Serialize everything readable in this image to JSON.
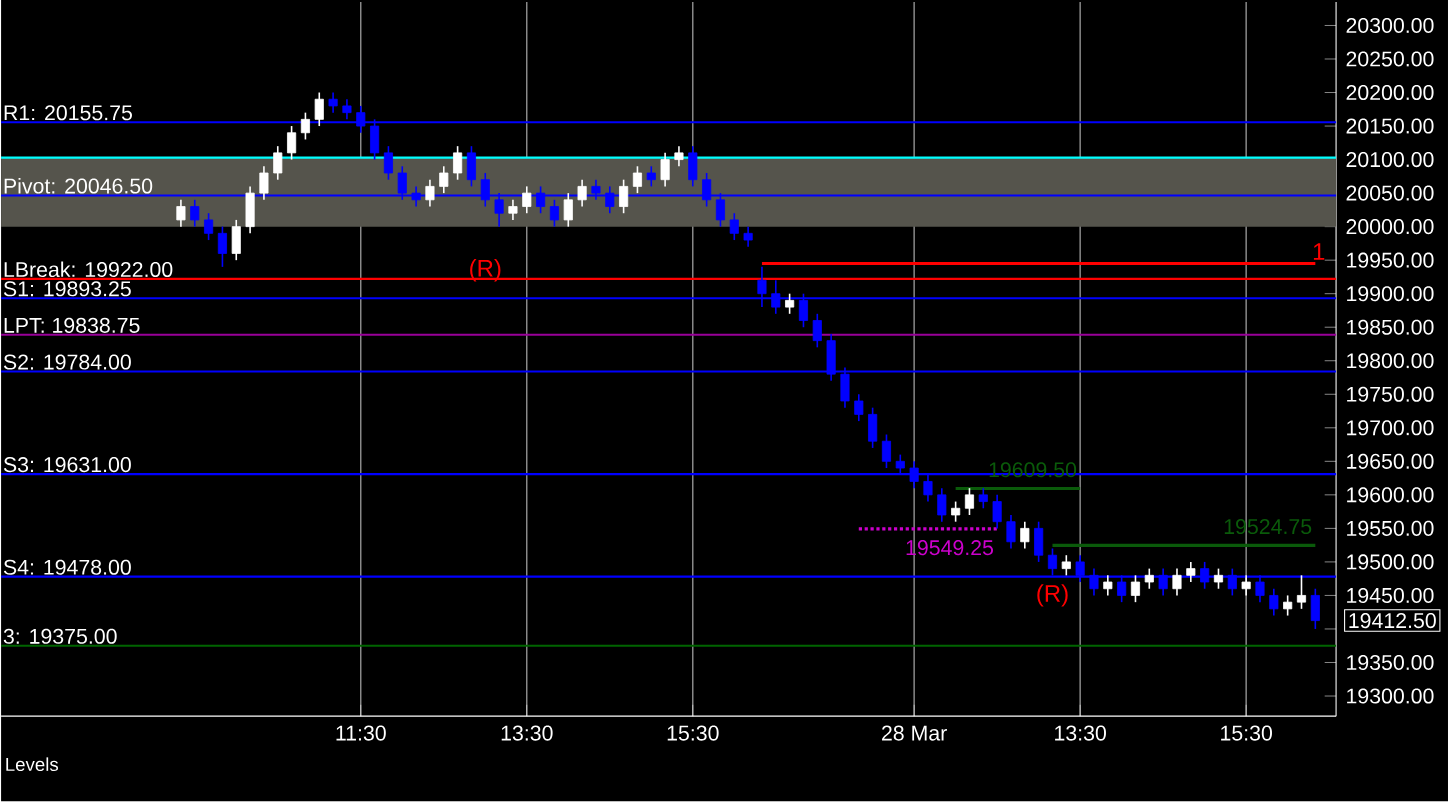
{
  "chart_data": {
    "type": "candlestick",
    "categories": [
      null,
      null,
      null,
      null,
      null,
      null,
      null,
      null,
      null,
      null,
      null,
      null,
      null,
      "11:30",
      null,
      null,
      null,
      null,
      null,
      null,
      null,
      null,
      null,
      null,
      null,
      "13:30",
      null,
      null,
      null,
      null,
      null,
      null,
      null,
      null,
      null,
      null,
      null,
      "15:30",
      null,
      null,
      null,
      null,
      null,
      null,
      null,
      null,
      null,
      null,
      null,
      null,
      null,
      null,
      null,
      "28 Mar",
      null,
      null,
      null,
      null,
      null,
      null,
      null,
      null,
      null,
      null,
      null,
      "13:30",
      null,
      null,
      null,
      null,
      null,
      null,
      null,
      null,
      null,
      null,
      null,
      "15:30",
      null,
      null,
      null,
      null,
      null
    ],
    "ohlc": [
      [
        20010,
        20040,
        20000,
        20030
      ],
      [
        20030,
        20040,
        20000,
        20010
      ],
      [
        20010,
        20020,
        19980,
        19990
      ],
      [
        19990,
        20000,
        19940,
        19960
      ],
      [
        19960,
        20010,
        19950,
        20000
      ],
      [
        20000,
        20060,
        19990,
        20050
      ],
      [
        20050,
        20090,
        20040,
        20080
      ],
      [
        20080,
        20120,
        20070,
        20110
      ],
      [
        20110,
        20150,
        20100,
        20140
      ],
      [
        20140,
        20170,
        20130,
        20160
      ],
      [
        20160,
        20200,
        20150,
        20190
      ],
      [
        20190,
        20200,
        20170,
        20180
      ],
      [
        20180,
        20190,
        20160,
        20170
      ],
      [
        20170,
        20180,
        20140,
        20150
      ],
      [
        20150,
        20160,
        20100,
        20110
      ],
      [
        20110,
        20120,
        20070,
        20080
      ],
      [
        20080,
        20090,
        20040,
        20050
      ],
      [
        20050,
        20060,
        20030,
        20040
      ],
      [
        20040,
        20070,
        20030,
        20060
      ],
      [
        20060,
        20090,
        20050,
        20080
      ],
      [
        20080,
        20120,
        20070,
        20110
      ],
      [
        20110,
        20120,
        20060,
        20070
      ],
      [
        20070,
        20080,
        20030,
        20040
      ],
      [
        20040,
        20050,
        20000,
        20020
      ],
      [
        20020,
        20040,
        20010,
        20030
      ],
      [
        20030,
        20060,
        20020,
        20050
      ],
      [
        20050,
        20060,
        20020,
        20030
      ],
      [
        20030,
        20040,
        20000,
        20010
      ],
      [
        20010,
        20050,
        20000,
        20040
      ],
      [
        20040,
        20070,
        20030,
        20060
      ],
      [
        20060,
        20070,
        20040,
        20050
      ],
      [
        20050,
        20060,
        20020,
        20030
      ],
      [
        20030,
        20070,
        20020,
        20060
      ],
      [
        20060,
        20090,
        20050,
        20080
      ],
      [
        20080,
        20090,
        20060,
        20070
      ],
      [
        20070,
        20110,
        20060,
        20100
      ],
      [
        20100,
        20120,
        20090,
        20110
      ],
      [
        20110,
        20120,
        20060,
        20070
      ],
      [
        20070,
        20080,
        20030,
        20040
      ],
      [
        20040,
        20050,
        20000,
        20010
      ],
      [
        20010,
        20020,
        19980,
        19990
      ],
      [
        19990,
        20000,
        19970,
        19980
      ],
      [
        19920,
        19940,
        19880,
        19900
      ],
      [
        19900,
        19920,
        19870,
        19880
      ],
      [
        19880,
        19900,
        19870,
        19890
      ],
      [
        19890,
        19900,
        19850,
        19860
      ],
      [
        19860,
        19870,
        19820,
        19830
      ],
      [
        19830,
        19840,
        19770,
        19780
      ],
      [
        19780,
        19790,
        19730,
        19740
      ],
      [
        19740,
        19750,
        19710,
        19720
      ],
      [
        19720,
        19730,
        19670,
        19680
      ],
      [
        19680,
        19690,
        19640,
        19650
      ],
      [
        19650,
        19660,
        19630,
        19640
      ],
      [
        19640,
        19650,
        19610,
        19620
      ],
      [
        19620,
        19630,
        19590,
        19600
      ],
      [
        19600,
        19610,
        19560,
        19570
      ],
      [
        19570,
        19590,
        19560,
        19580
      ],
      [
        19580,
        19610,
        19570,
        19600
      ],
      [
        19600,
        19610,
        19580,
        19590
      ],
      [
        19590,
        19600,
        19550,
        19560
      ],
      [
        19560,
        19570,
        19520,
        19530
      ],
      [
        19530,
        19560,
        19520,
        19550
      ],
      [
        19550,
        19560,
        19500,
        19510
      ],
      [
        19510,
        19520,
        19480,
        19490
      ],
      [
        19490,
        19510,
        19480,
        19500
      ],
      [
        19500,
        19510,
        19470,
        19480
      ],
      [
        19480,
        19490,
        19450,
        19460
      ],
      [
        19460,
        19480,
        19450,
        19470
      ],
      [
        19470,
        19480,
        19440,
        19450
      ],
      [
        19450,
        19480,
        19440,
        19470
      ],
      [
        19470,
        19490,
        19460,
        19480
      ],
      [
        19480,
        19490,
        19450,
        19460
      ],
      [
        19460,
        19490,
        19450,
        19480
      ],
      [
        19480,
        19500,
        19470,
        19490
      ],
      [
        19490,
        19500,
        19460,
        19470
      ],
      [
        19470,
        19490,
        19460,
        19480
      ],
      [
        19480,
        19490,
        19450,
        19460
      ],
      [
        19460,
        19480,
        19450,
        19470
      ],
      [
        19470,
        19480,
        19440,
        19450
      ],
      [
        19450,
        19460,
        19420,
        19430
      ],
      [
        19430,
        19450,
        19420,
        19440
      ],
      [
        19440,
        19480,
        19430,
        19450
      ],
      [
        19450,
        19460,
        19400,
        19412.5
      ]
    ],
    "colors": [
      "#ffffff",
      "#0000ff",
      "#0000ff",
      "#0000ff",
      "#ffffff",
      "#ffffff",
      "#ffffff",
      "#ffffff",
      "#ffffff",
      "#ffffff",
      "#ffffff",
      "#0000ff",
      "#0000ff",
      "#0000ff",
      "#0000ff",
      "#0000ff",
      "#0000ff",
      "#0000ff",
      "#ffffff",
      "#ffffff",
      "#ffffff",
      "#0000ff",
      "#0000ff",
      "#0000ff",
      "#ffffff",
      "#ffffff",
      "#0000ff",
      "#0000ff",
      "#ffffff",
      "#ffffff",
      "#0000ff",
      "#0000ff",
      "#ffffff",
      "#ffffff",
      "#0000ff",
      "#ffffff",
      "#ffffff",
      "#0000ff",
      "#0000ff",
      "#0000ff",
      "#0000ff",
      "#0000ff",
      "#0000ff",
      "#0000ff",
      "#ffffff",
      "#0000ff",
      "#0000ff",
      "#0000ff",
      "#0000ff",
      "#0000ff",
      "#0000ff",
      "#0000ff",
      "#0000ff",
      "#0000ff",
      "#0000ff",
      "#0000ff",
      "#ffffff",
      "#ffffff",
      "#0000ff",
      "#0000ff",
      "#0000ff",
      "#ffffff",
      "#0000ff",
      "#0000ff",
      "#ffffff",
      "#0000ff",
      "#0000ff",
      "#ffffff",
      "#0000ff",
      "#ffffff",
      "#ffffff",
      "#0000ff",
      "#ffffff",
      "#ffffff",
      "#0000ff",
      "#ffffff",
      "#0000ff",
      "#ffffff",
      "#0000ff",
      "#0000ff",
      "#ffffff",
      "#ffffff",
      "#0000ff"
    ],
    "series": [
      {
        "type": "line",
        "color": "#ff0000",
        "values": [
          null,
          null,
          null,
          null,
          null,
          null,
          null,
          null,
          null,
          null,
          null,
          null,
          null,
          null,
          null,
          null,
          null,
          null,
          null,
          null,
          null,
          null,
          null,
          null,
          null,
          null,
          null,
          null,
          null,
          null,
          null,
          null,
          null,
          null,
          null,
          null,
          null,
          null,
          null,
          null,
          null,
          null,
          19945,
          19945,
          19945,
          19945,
          19945,
          19945,
          19945,
          19945,
          19945,
          19945,
          19945,
          19945,
          19945,
          19945,
          19945,
          19945,
          19945,
          19945,
          19945,
          19945,
          19945,
          19945,
          19945,
          19945,
          19945,
          19945,
          19945,
          19945,
          19945,
          19945,
          19945,
          19945,
          19945,
          19945,
          19945,
          19945,
          19945,
          19945,
          19945,
          19945,
          19945
        ]
      },
      {
        "type": "line",
        "name": "19609.50",
        "color": "#0a5a0a",
        "values": [
          null,
          null,
          null,
          null,
          null,
          null,
          null,
          null,
          null,
          null,
          null,
          null,
          null,
          null,
          null,
          null,
          null,
          null,
          null,
          null,
          null,
          null,
          null,
          null,
          null,
          null,
          null,
          null,
          null,
          null,
          null,
          null,
          null,
          null,
          null,
          null,
          null,
          null,
          null,
          null,
          null,
          null,
          null,
          null,
          null,
          null,
          null,
          null,
          null,
          null,
          null,
          null,
          null,
          null,
          null,
          null,
          19609.5,
          19609.5,
          19609.5,
          19609.5,
          19609.5,
          19609.5,
          19609.5,
          19609.5,
          19609.5,
          19609.5,
          null,
          null,
          null,
          null,
          null,
          null,
          null,
          null,
          null,
          null,
          null,
          null,
          null,
          null,
          null,
          null,
          null
        ]
      },
      {
        "type": "line",
        "name": "19549.25",
        "color": "#cc00cc",
        "line_style": "dotted",
        "values": [
          null,
          null,
          null,
          null,
          null,
          null,
          null,
          null,
          null,
          null,
          null,
          null,
          null,
          null,
          null,
          null,
          null,
          null,
          null,
          null,
          null,
          null,
          null,
          null,
          null,
          null,
          null,
          null,
          null,
          null,
          null,
          null,
          null,
          null,
          null,
          null,
          null,
          null,
          null,
          null,
          null,
          null,
          null,
          null,
          null,
          null,
          null,
          null,
          null,
          19549.25,
          19549.25,
          19549.25,
          19549.25,
          19549.25,
          19549.25,
          19549.25,
          19549.25,
          19549.25,
          19549.25,
          19549.25,
          null,
          null,
          null,
          null,
          null,
          null,
          null,
          null,
          null,
          null,
          null,
          null,
          null,
          null,
          null,
          null,
          null,
          null,
          null,
          null,
          null,
          null,
          null
        ]
      },
      {
        "type": "line",
        "name": "19524.75",
        "color": "#0a5a0a",
        "values": [
          null,
          null,
          null,
          null,
          null,
          null,
          null,
          null,
          null,
          null,
          null,
          null,
          null,
          null,
          null,
          null,
          null,
          null,
          null,
          null,
          null,
          null,
          null,
          null,
          null,
          null,
          null,
          null,
          null,
          null,
          null,
          null,
          null,
          null,
          null,
          null,
          null,
          null,
          null,
          null,
          null,
          null,
          null,
          null,
          null,
          null,
          null,
          null,
          null,
          null,
          null,
          null,
          null,
          null,
          null,
          null,
          null,
          null,
          null,
          null,
          null,
          null,
          null,
          19524.75,
          19524.75,
          19524.75,
          19524.75,
          19524.75,
          19524.75,
          19524.75,
          19524.75,
          19524.75,
          19524.75,
          19524.75,
          19524.75,
          19524.75,
          19524.75,
          19524.75,
          19524.75,
          19524.75,
          19524.75,
          19524.75,
          19524.75
        ]
      }
    ],
    "ylim": [
      19270,
      20335
    ],
    "yticks": [
      {
        "value": 19300,
        "label": "19300.00"
      },
      {
        "value": 19350,
        "label": "19350.00"
      },
      {
        "value": 19400,
        "label": null
      },
      {
        "value": 19450,
        "label": "19450.00"
      },
      {
        "value": 19500,
        "label": "19500.00"
      },
      {
        "value": 19550,
        "label": "19550.00"
      },
      {
        "value": 19600,
        "label": "19600.00"
      },
      {
        "value": 19650,
        "label": "19650.00"
      },
      {
        "value": 19700,
        "label": "19700.00"
      },
      {
        "value": 19750,
        "label": "19750.00"
      },
      {
        "value": 19800,
        "label": "19800.00"
      },
      {
        "value": 19850,
        "label": "19850.00"
      },
      {
        "value": 19900,
        "label": "19900.00"
      },
      {
        "value": 19950,
        "label": "19950.00"
      },
      {
        "value": 20000,
        "label": "20000.00"
      },
      {
        "value": 20050,
        "label": "20050.00"
      },
      {
        "value": 20100,
        "label": "20100.00"
      },
      {
        "value": 20150,
        "label": "20150.00"
      },
      {
        "value": 20200,
        "label": "20200.00"
      },
      {
        "value": 20250,
        "label": "20250.00"
      },
      {
        "value": 20300,
        "label": "20300.00"
      }
    ],
    "grid": "x",
    "bands": [
      {
        "axis": "y",
        "from": 20000,
        "to": 20103,
        "color": "#55544c"
      }
    ],
    "ref_lines": [
      {
        "axis": "y",
        "value": 20155.75,
        "label": "R1: 20155.75",
        "color": "#0000ff"
      },
      {
        "axis": "y",
        "value": 20103,
        "color": "#00ffff"
      },
      {
        "axis": "y",
        "value": 20046.5,
        "label": "Pivot: 20046.50",
        "color": "#0000ff"
      },
      {
        "axis": "y",
        "value": 19922,
        "label": "LBreak: 19922.00",
        "color": "#ff0000"
      },
      {
        "axis": "y",
        "value": 19893.25,
        "label": "S1: 19893.25",
        "color": "#0000ff"
      },
      {
        "axis": "y",
        "value": 19838.75,
        "label": "LPT: 19838.75",
        "color": "#990099"
      },
      {
        "axis": "y",
        "value": 19784,
        "label": "S2: 19784.00",
        "color": "#0000ff"
      },
      {
        "axis": "y",
        "value": 19631,
        "label": "S3: 19631.00",
        "color": "#0000ff"
      },
      {
        "axis": "y",
        "value": 19478,
        "label": "S4: 19478.00",
        "color": "#0000ff"
      },
      {
        "axis": "y",
        "value": 19375,
        "label": "3: 19375.00",
        "color": "#006400"
      }
    ],
    "annotations": [
      "(R)",
      "(R)",
      "Levels",
      "19412.50",
      "1"
    ]
  }
}
